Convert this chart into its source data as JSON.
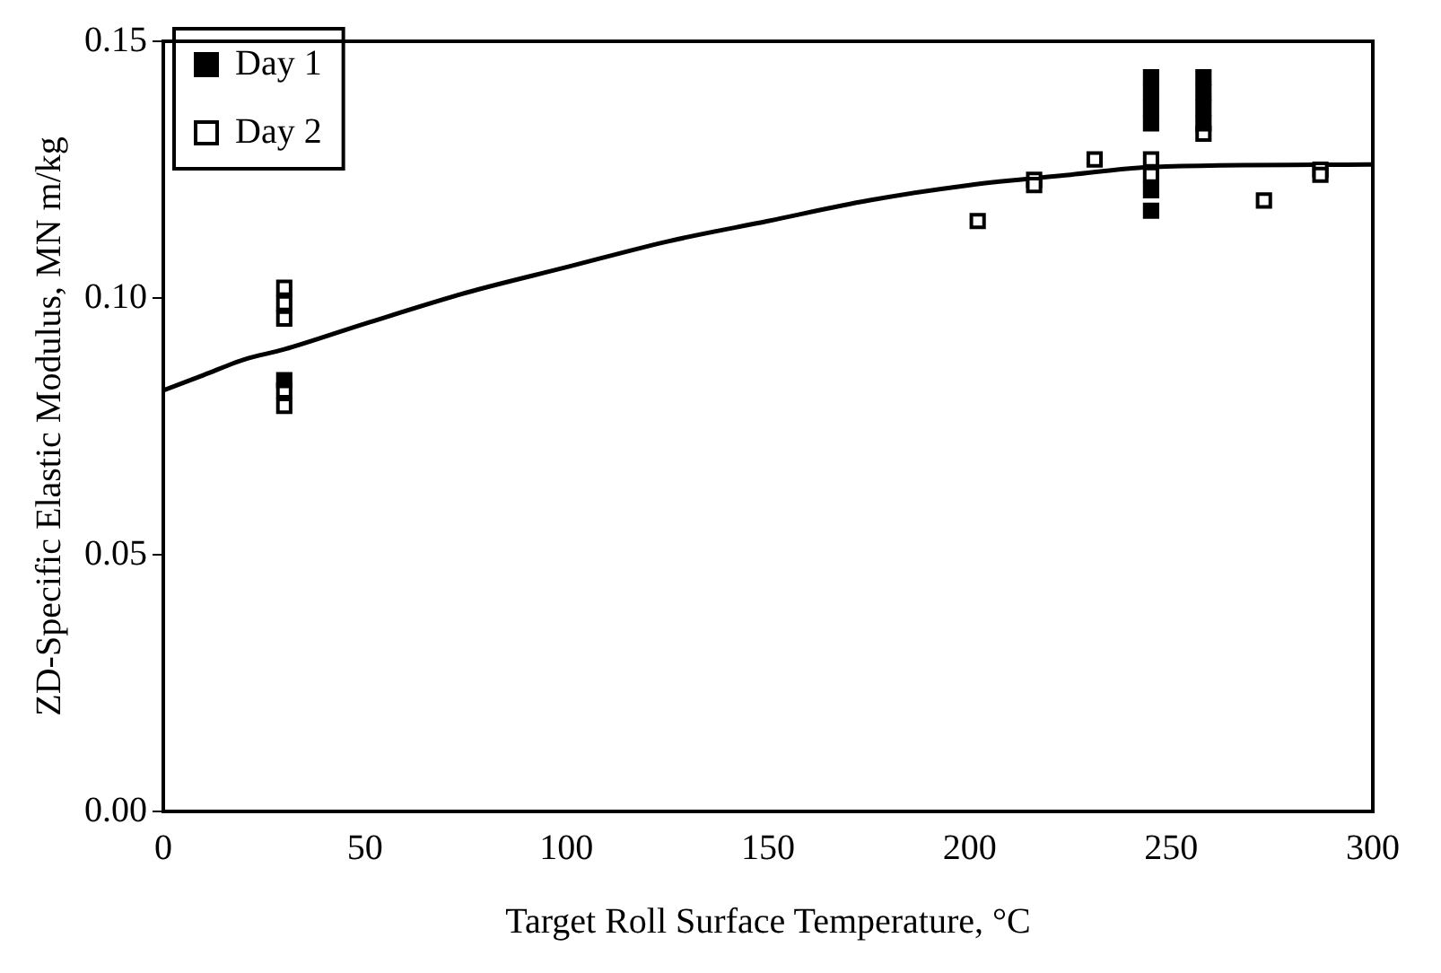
{
  "chart_data": {
    "type": "scatter",
    "xlabel": "Target Roll Surface Temperature, °C",
    "ylabel": "ZD-Specific Elastic Modulus, MN m/kg",
    "xlim": [
      0,
      300
    ],
    "xticks": [
      0,
      50,
      100,
      150,
      200,
      250,
      300
    ],
    "ylim": [
      0,
      0.15
    ],
    "yticks": [
      {
        "value": 0,
        "label": "0.00"
      },
      {
        "value": 0.05,
        "label": "0.05"
      },
      {
        "value": 0.1,
        "label": "0.10"
      },
      {
        "value": 0.15,
        "label": "0.15"
      }
    ],
    "grid": false,
    "legend": "top left",
    "marker": "square",
    "series": [
      {
        "name": "Day 1",
        "color": "#000000",
        "x": [
          30,
          245,
          245,
          245,
          245,
          245,
          245,
          258,
          258,
          258,
          258
        ],
        "values": [
          0.084,
          0.143,
          0.14,
          0.137,
          0.134,
          0.121,
          0.117,
          0.143,
          0.14,
          0.137,
          0.134
        ]
      },
      {
        "name": "Day 2",
        "color": "#ffffff",
        "x": [
          30,
          30,
          30,
          30,
          30,
          202,
          216,
          216,
          231,
          245,
          245,
          258,
          273,
          287,
          287
        ],
        "values": [
          0.102,
          0.099,
          0.096,
          0.082,
          0.079,
          0.115,
          0.123,
          0.122,
          0.127,
          0.127,
          0.124,
          0.132,
          0.119,
          0.125,
          0.124
        ]
      },
      {
        "type": "line",
        "marker": "none",
        "color": "#000000",
        "x": [
          0,
          10,
          20,
          30,
          50,
          75,
          100,
          125,
          150,
          175,
          200,
          225,
          245,
          300
        ],
        "values": [
          0.082,
          0.085,
          0.088,
          0.09,
          0.095,
          0.101,
          0.106,
          0.111,
          0.115,
          0.119,
          0.122,
          0.124,
          0.1255,
          0.126
        ]
      }
    ]
  }
}
